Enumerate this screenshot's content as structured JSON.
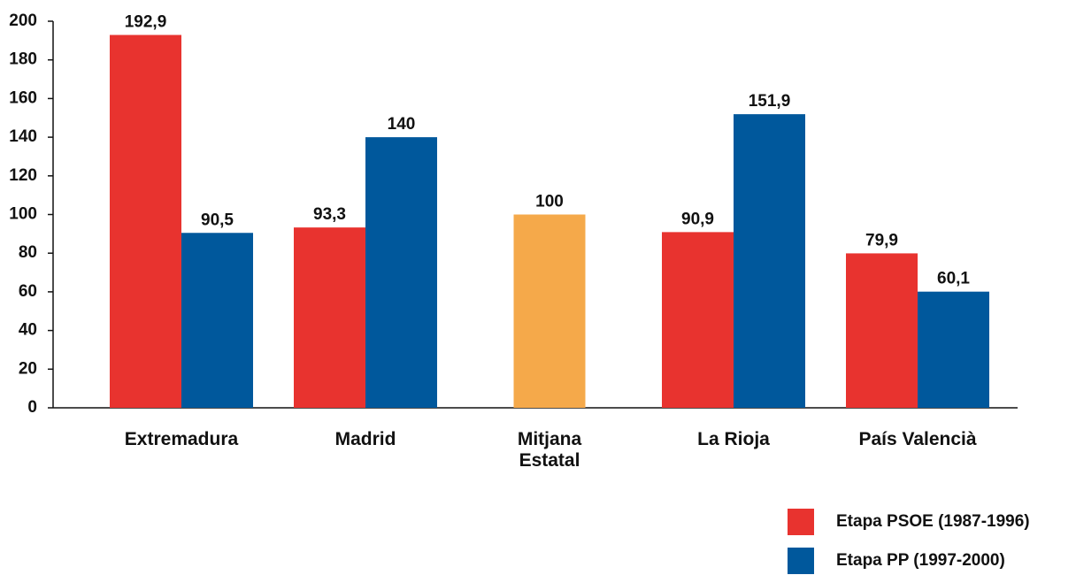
{
  "chart_data": {
    "type": "bar",
    "categories": [
      "Extremadura",
      "Madrid",
      "Mitjana\nEstatal",
      "La Rioja",
      "País Valencià"
    ],
    "series": [
      {
        "name": "Etapa PSOE (1987-1996)",
        "color": "#e8332f",
        "values": [
          192.9,
          93.3,
          null,
          90.9,
          79.9
        ],
        "value_labels": [
          "192,9",
          "93,3",
          null,
          "90,9",
          "79,9"
        ]
      },
      {
        "name": "Etapa PP (1997-2000)",
        "color": "#00589c",
        "values": [
          90.5,
          140,
          null,
          151.9,
          60.1
        ],
        "value_labels": [
          "90,5",
          "140",
          null,
          "151,9",
          "60,1"
        ]
      },
      {
        "color": "#f5a94a",
        "values": [
          null,
          null,
          100,
          null,
          null
        ],
        "value_labels": [
          null,
          null,
          "100",
          null,
          null
        ]
      }
    ],
    "ylim": [
      0,
      200
    ],
    "yticks": [
      0,
      20,
      40,
      60,
      80,
      100,
      120,
      140,
      160,
      180,
      200
    ],
    "grid": false,
    "legend": "bottom-right"
  }
}
